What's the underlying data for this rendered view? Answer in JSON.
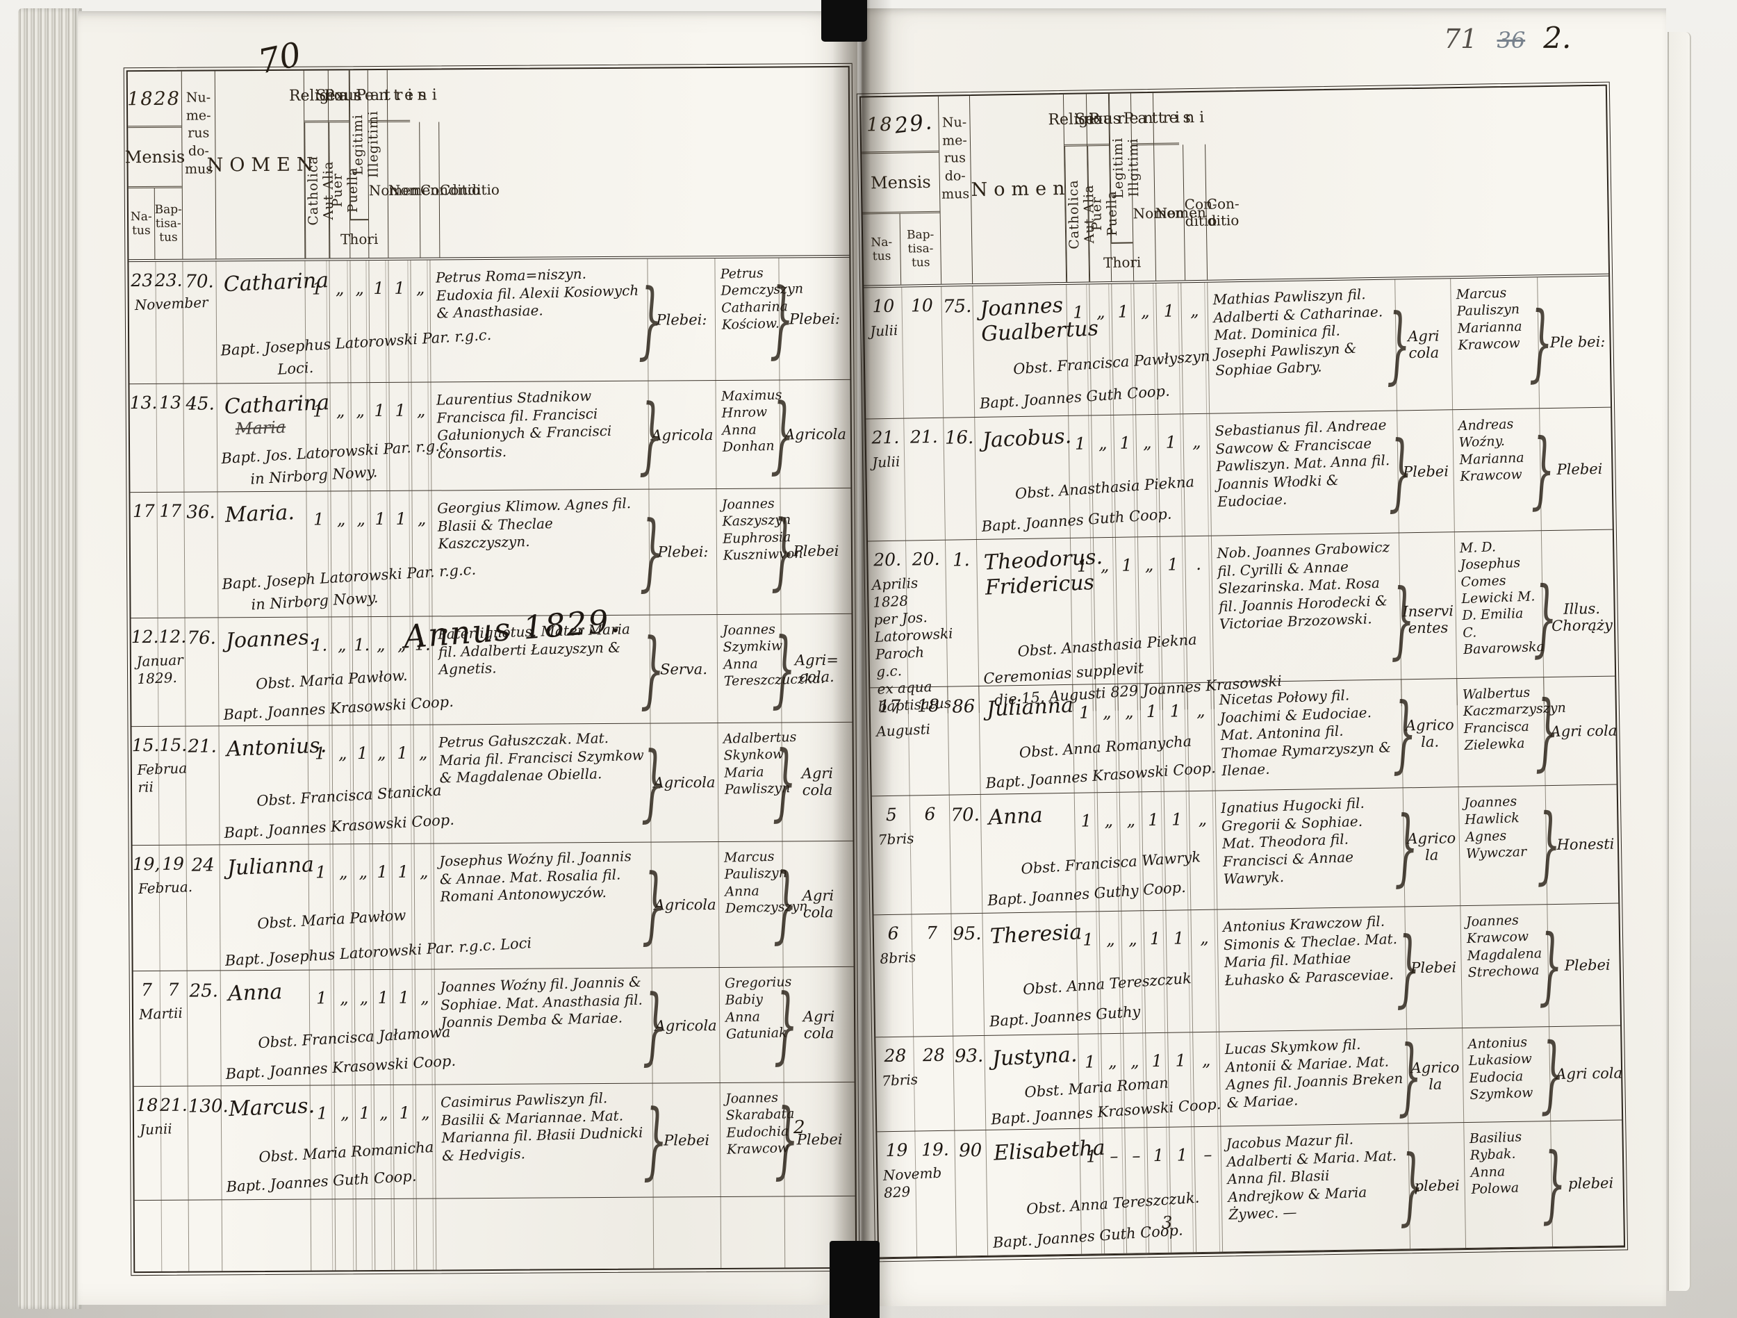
{
  "scan": {
    "ink_color": "#1d1712",
    "paper_color": "#f8f6f0",
    "marginalia": {
      "left_top_folio": "70",
      "right_top_pencil": "71",
      "right_top_struck": "36",
      "right_top_ink": "2.",
      "left_bottom_page": "2",
      "right_bottom_page": "3"
    }
  },
  "left": {
    "year": "1828",
    "year_hand": "",
    "annus_header": "Annus 1829.",
    "header": {
      "mensis": "Mensis",
      "natus": "Na-\ntus",
      "baptisatus": "Bap-\ntisa-\ntus",
      "numerus_domus": "Nu-\nme-\nrus\ndo-\nmus",
      "nomen": "NOMEN",
      "religio": "Religio",
      "catholica": "Catholica",
      "aut_alia": "Aut Alia",
      "sexus": "Sexus",
      "puer": "Puer",
      "puella": "Puella",
      "legitimi": "Legitimi",
      "illegitimi": "Illegitimi",
      "thori": "Thori",
      "parentes": "Parentes",
      "patrini": "Patrini",
      "nomen_sub": "Nomen",
      "conditio_sub": "Conditio"
    },
    "entries": [
      {
        "natus": "23",
        "baptisatus": "23.",
        "month": "November",
        "house": "70.",
        "name": "Catharina",
        "name_struck": "",
        "ticks": [
          "1",
          "„",
          "„",
          "1",
          "1",
          "„"
        ],
        "obst": "",
        "bapt": "Bapt. Josephus Latorowski Par. r.g.c.\n            Loci.",
        "parentes": "Petrus Roma=niszyn. Eudoxia fil. Alexii Kosiowych & Anasthasiae.",
        "parentes_conditio": "Plebei:",
        "patrini": "Petrus Demczyszyn Catharina Kościow.",
        "patrini_conditio": "Plebei:"
      },
      {
        "natus": "13.",
        "baptisatus": "13",
        "month": "",
        "house": "45.",
        "name": "Catharina",
        "name_struck": "Maria",
        "ticks": [
          "1",
          "„",
          "„",
          "1",
          "1",
          "„"
        ],
        "obst": "",
        "bapt": "Bapt. Jos. Latorowski Par. r.g.c.\n      in Nirborg Nowy.",
        "parentes": "Laurentius Stadnikow Francisca fil. Francisci Gałunionych & Francisci consortis.",
        "parentes_conditio": "Agricola",
        "patrini": "Maximus Hnrow Anna Donhan",
        "patrini_conditio": "Agricola"
      },
      {
        "natus": "17",
        "baptisatus": "17",
        "month": "",
        "house": "36.",
        "name": "Maria.",
        "name_struck": "",
        "ticks": [
          "1",
          "„",
          "„",
          "1",
          "1",
          "„"
        ],
        "obst": "",
        "bapt": "Bapt. Joseph Latorowski Par. r.g.c.\n      in Nirborg Nowy.",
        "parentes": "Georgius Klimow. Agnes fil. Blasii & Theclae Kaszczyszyn.",
        "parentes_conditio": "Plebei:",
        "patrini": "Joannes Kaszyszyn Euphrosia Kuszniwvon",
        "patrini_conditio": "Plebei"
      },
      {
        "natus": "12.",
        "baptisatus": "12.",
        "month": "Januar\n1829.",
        "house": "76.",
        "name": "Joannes.",
        "name_struck": "",
        "ticks": [
          "1.",
          "„",
          "1.",
          "„",
          "„",
          "1."
        ],
        "obst": "Obst. Maria Pawłow.",
        "bapt": "Bapt. Joannes Krasowski Coop.",
        "parentes": "Pater ignotus. Mater Maria fil. Adalberti Łauzyszyn & Agnetis.",
        "parentes_conditio": "Serva.",
        "patrini": "Joannes Szymkiw Anna Tereszczuczka.",
        "patrini_conditio": "Agri= cola."
      },
      {
        "natus": "15.",
        "baptisatus": "15.",
        "month": "Februa\nrii",
        "house": "21.",
        "name": "Antonius.",
        "name_struck": "",
        "ticks": [
          "1",
          "„",
          "1",
          "„",
          "1",
          "„"
        ],
        "obst": "Obst. Francisca Stanicka",
        "bapt": "Bapt. Joannes Krasowski Coop.",
        "parentes": "Petrus Gałuszczak. Mat. Maria fil. Francisci Szymkow & Magdalenae Obiella.",
        "parentes_conditio": "Agricola",
        "patrini": "Adalbertus Skynkow Maria Pawliszyn",
        "patrini_conditio": "Agri cola"
      },
      {
        "natus": "19,",
        "baptisatus": "19",
        "month": "Februa.",
        "house": "24",
        "name": "Julianna",
        "name_struck": "",
        "ticks": [
          "1",
          "„",
          "„",
          "1",
          "1",
          "„"
        ],
        "obst": "Obst. Maria Pawłow",
        "bapt": "Bapt. Josephus Latorowski Par. r.g.c. Loci",
        "parentes": "Josephus Woźny fil. Joannis & Annae. Mat. Rosalia fil. Romani Antonowyczów.",
        "parentes_conditio": "Agricola",
        "patrini": "Marcus Pauliszyn Anna Demczyszyn",
        "patrini_conditio": "Agri cola"
      },
      {
        "natus": "7",
        "baptisatus": "7",
        "month": "Martii",
        "house": "25.",
        "name": "Anna",
        "name_struck": "",
        "ticks": [
          "1",
          "„",
          "„",
          "1",
          "1",
          "„"
        ],
        "obst": "Obst. Francisca Jałamowa",
        "bapt": "Bapt. Joannes Krasowski Coop.",
        "parentes": "Joannes Woźny fil. Joannis & Sophiae. Mat. Anasthasia fil. Joannis Demba & Mariae.",
        "parentes_conditio": "Agricola",
        "patrini": "Gregorius Babiy Anna Gatuniak",
        "patrini_conditio": "Agri cola"
      },
      {
        "natus": "18",
        "baptisatus": "21.",
        "month": "Junii",
        "house": "130.",
        "name": "Marcus.",
        "name_struck": "",
        "ticks": [
          "1",
          "„",
          "1",
          "„",
          "1",
          "„"
        ],
        "obst": "Obst. Maria Romanicha",
        "bapt": "Bapt. Joannes Guth Coop.",
        "parentes": "Casimirus Pawliszyn fil. Basilii & Mariannae. Mat. Marianna fil. Błasii Dudnicki & Hedvigis.",
        "parentes_conditio": "Plebei",
        "patrini": "Joannes Skarabata Eudochia Krawcow",
        "patrini_conditio": "Plebei"
      }
    ]
  },
  "right": {
    "year": "18",
    "year_hand": "29.",
    "header": {
      "mensis": "Mensis",
      "natus": "Na-\ntus",
      "baptisatus": "Bap-\ntisa-\ntus",
      "numerus_domus": "Nu-\nme-\nrus\ndo-\nmus",
      "nomen": "Nomen",
      "religio": "Religio",
      "catholica": "Catholica",
      "aut_alia": "Aut Alia",
      "sexus": "Sexus",
      "puer": "Puer",
      "puella": "Puella",
      "legitimi": "Legitimi",
      "illegitimi": "Illgitimi",
      "thori": "Thori",
      "parentes": "Parentes",
      "patrini": "Patrini",
      "nomen_sub": "Nomen",
      "conditio_sub": "Con-\nditio"
    },
    "entries": [
      {
        "natus": "10",
        "baptisatus": "10",
        "month": "Julii",
        "house": "75.",
        "name": "Joannes\nGualbertus",
        "name_struck": "",
        "ticks": [
          "1",
          "„",
          "1",
          "„",
          "1",
          "„"
        ],
        "obst": "Obst. Francisca Pawłyszyn",
        "bapt": "Bapt. Joannes Guth Coop.",
        "parentes": "Mathias Pawliszyn fil. Adalberti & Catharinae. Mat. Dominica fil. Josephi Pawliszyn & Sophiae Gabry.",
        "parentes_conditio": "Agri cola",
        "patrini": "Marcus Pauliszyn Marianna Krawcow",
        "patrini_conditio": "Ple bei:"
      },
      {
        "natus": "21.",
        "baptisatus": "21.",
        "month": "Julii",
        "house": "16.",
        "name": "Jacobus.",
        "name_struck": "",
        "ticks": [
          "1",
          "„",
          "1",
          "„",
          "1",
          "„"
        ],
        "obst": "Obst. Anasthasia Piekna",
        "bapt": "Bapt. Joannes Guth Coop.",
        "parentes": "Sebastianus fil. Andreae Sawcow & Franciscae Pawliszyn. Mat. Anna fil. Joannis Włodki & Eudociae.",
        "parentes_conditio": "Plebei",
        "patrini": "Andreas Woźny. Marianna Krawcow",
        "patrini_conditio": "Plebei"
      },
      {
        "natus": "20.",
        "baptisatus": "20.",
        "month": "Aprilis\n1828\nper Jos.\nLatorowski\nParoch g.c.\nex aqua\nbaptisatus",
        "house": "1.",
        "name": "Theodorus.\nFridericus",
        "name_struck": "",
        "ticks": [
          "1",
          "„",
          "1",
          "„",
          "1",
          "."
        ],
        "obst": "Obst. Anasthasia Piekna",
        "bapt": "Ceremonias supplevit\n  die 15. Augusti 829 Joannes Krasowski",
        "parentes": "Nob. Joannes Grabowicz fil. Cyrilli & Annae Slezarinska. Mat. Rosa fil. Joannis Horodecki & Victoriae Brzozowski.",
        "parentes_conditio": "Inservi entes",
        "patrini": "M. D. Josephus Comes Lewicki M. D. Emilia C. Bavarowska",
        "patrini_conditio": "Illus. Chorąży"
      },
      {
        "natus": "17",
        "baptisatus": "18",
        "month": "Augusti",
        "house": "86",
        "name": "Julianna",
        "name_struck": "",
        "ticks": [
          "1",
          "„",
          "„",
          "1",
          "1",
          "„"
        ],
        "obst": "Obst. Anna Romanycha",
        "bapt": "Bapt. Joannes Krasowski Coop.",
        "parentes": "Nicetas Połowy fil. Joachimi & Eudociae. Mat. Antonina fil. Thomae Rymarzyszyn & Ilenae.",
        "parentes_conditio": "Agrico la.",
        "patrini": "Walbertus Kaczmarzyszyn Francisca Zielewka",
        "patrini_conditio": "Agri cola"
      },
      {
        "natus": "5",
        "baptisatus": "6",
        "month": "7bris",
        "house": "70.",
        "name": "Anna",
        "name_struck": "",
        "ticks": [
          "1",
          "„",
          "„",
          "1",
          "1",
          "„"
        ],
        "obst": "Obst. Francisca Wawryk",
        "bapt": "Bapt. Joannes Guthy Coop.",
        "parentes": "Ignatius Hugocki fil. Gregorii & Sophiae. Mat. Theodora fil. Francisci & Annae Wawryk.",
        "parentes_conditio": "Agrico la",
        "patrini": "Joannes Hawlick Agnes Wywczar",
        "patrini_conditio": "Honesti"
      },
      {
        "natus": "6",
        "baptisatus": "7",
        "month": "8bris",
        "house": "95.",
        "name": "Theresia",
        "name_struck": "",
        "ticks": [
          "1",
          "„",
          "„",
          "1",
          "1",
          "„"
        ],
        "obst": "Obst. Anna Tereszczuk",
        "bapt": "Bapt. Joannes Guthy",
        "parentes": "Antonius Krawczow fil. Simonis & Theclae. Mat. Maria fil. Mathiae Łuhasko & Parasceviae.",
        "parentes_conditio": "Plebei",
        "patrini": "Joannes Krawcow Magdalena Strechowa",
        "patrini_conditio": "Plebei"
      },
      {
        "natus": "28",
        "baptisatus": "28",
        "month": "7bris",
        "house": "93.",
        "name": "Justyna.",
        "name_struck": "",
        "ticks": [
          "1",
          "„",
          "„",
          "1",
          "1",
          "„"
        ],
        "obst": "Obst. Maria Roman",
        "bapt": "Bapt. Joannes Krasowski Coop.",
        "parentes": "Lucas Skymkow fil. Antonii & Mariae. Mat. Agnes fil. Joannis Breken & Mariae.",
        "parentes_conditio": "Agrico la",
        "patrini": "Antonius Lukasiow Eudocia Szymkow",
        "patrini_conditio": "Agri cola"
      },
      {
        "natus": "19",
        "baptisatus": "19.",
        "month": "Novemb\n829",
        "house": "90",
        "name": "Elisabetha",
        "name_struck": "",
        "ticks": [
          "1",
          "–",
          "–",
          "1",
          "1",
          "–"
        ],
        "obst": "Obst. Anna Tereszczuk.",
        "bapt": "Bapt. Joannes Guth Coop.",
        "parentes": "Jacobus Mazur fil. Adalberti & Maria. Mat. Anna fil. Blasii Andrejkow & Maria Żywec. —",
        "parentes_conditio": "plebei",
        "patrini": "Basilius Rybak. Anna Polowa",
        "patrini_conditio": "plebei"
      }
    ]
  }
}
